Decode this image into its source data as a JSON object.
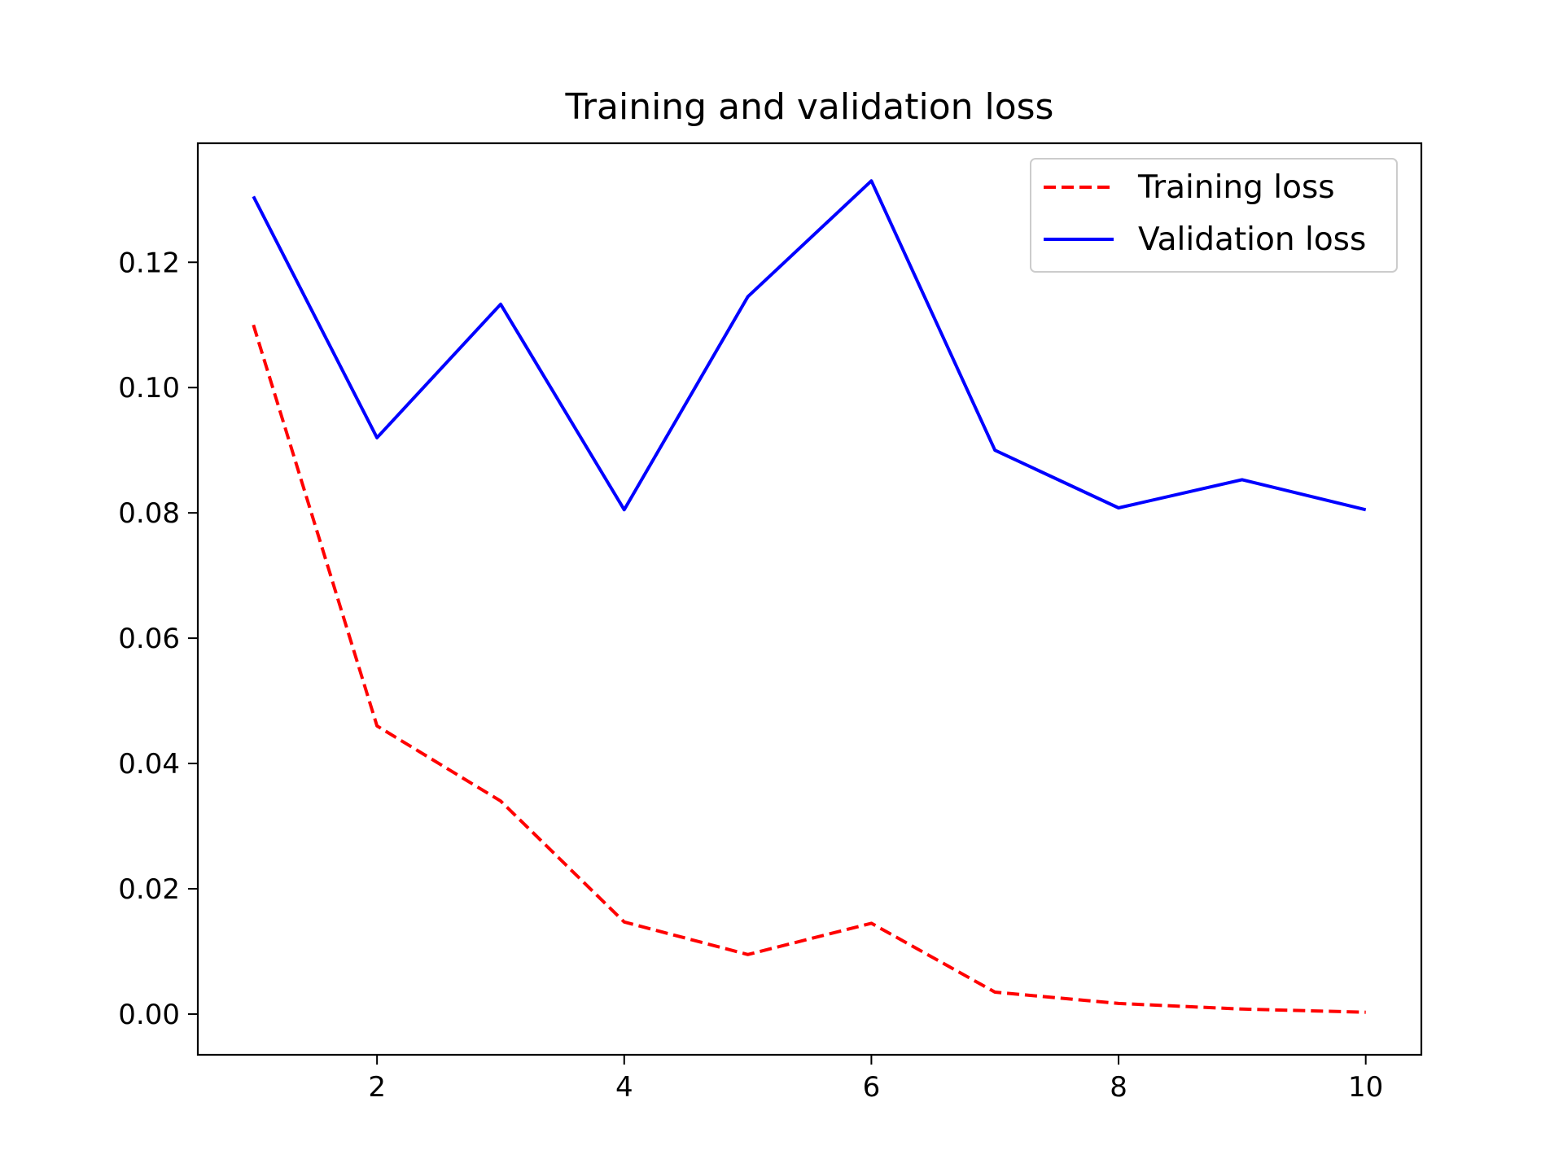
{
  "chart_data": {
    "type": "line",
    "title": "Training and validation loss",
    "xlabel": "",
    "ylabel": "",
    "x": [
      1,
      2,
      3,
      4,
      5,
      6,
      7,
      8,
      9,
      10
    ],
    "xlim": [
      0.55,
      10.45
    ],
    "ylim": [
      -0.0065,
      0.139
    ],
    "xticks": [
      2,
      4,
      6,
      8,
      10
    ],
    "xtick_labels": [
      "2",
      "4",
      "6",
      "8",
      "10"
    ],
    "yticks": [
      0.0,
      0.02,
      0.04,
      0.06,
      0.08,
      0.1,
      0.12
    ],
    "ytick_labels": [
      "0.00",
      "0.02",
      "0.04",
      "0.06",
      "0.08",
      "0.10",
      "0.12"
    ],
    "grid": false,
    "legend_position": "top-right",
    "series": [
      {
        "name": "Training loss",
        "values": [
          0.11,
          0.046,
          0.034,
          0.0147,
          0.0095,
          0.0145,
          0.0035,
          0.0017,
          0.0008,
          0.0003
        ],
        "color": "#ff0000",
        "style": "dashed"
      },
      {
        "name": "Validation loss",
        "values": [
          0.1305,
          0.092,
          0.1133,
          0.0805,
          0.1145,
          0.133,
          0.09,
          0.0808,
          0.0853,
          0.0805
        ],
        "color": "#0000ff",
        "style": "solid"
      }
    ]
  }
}
